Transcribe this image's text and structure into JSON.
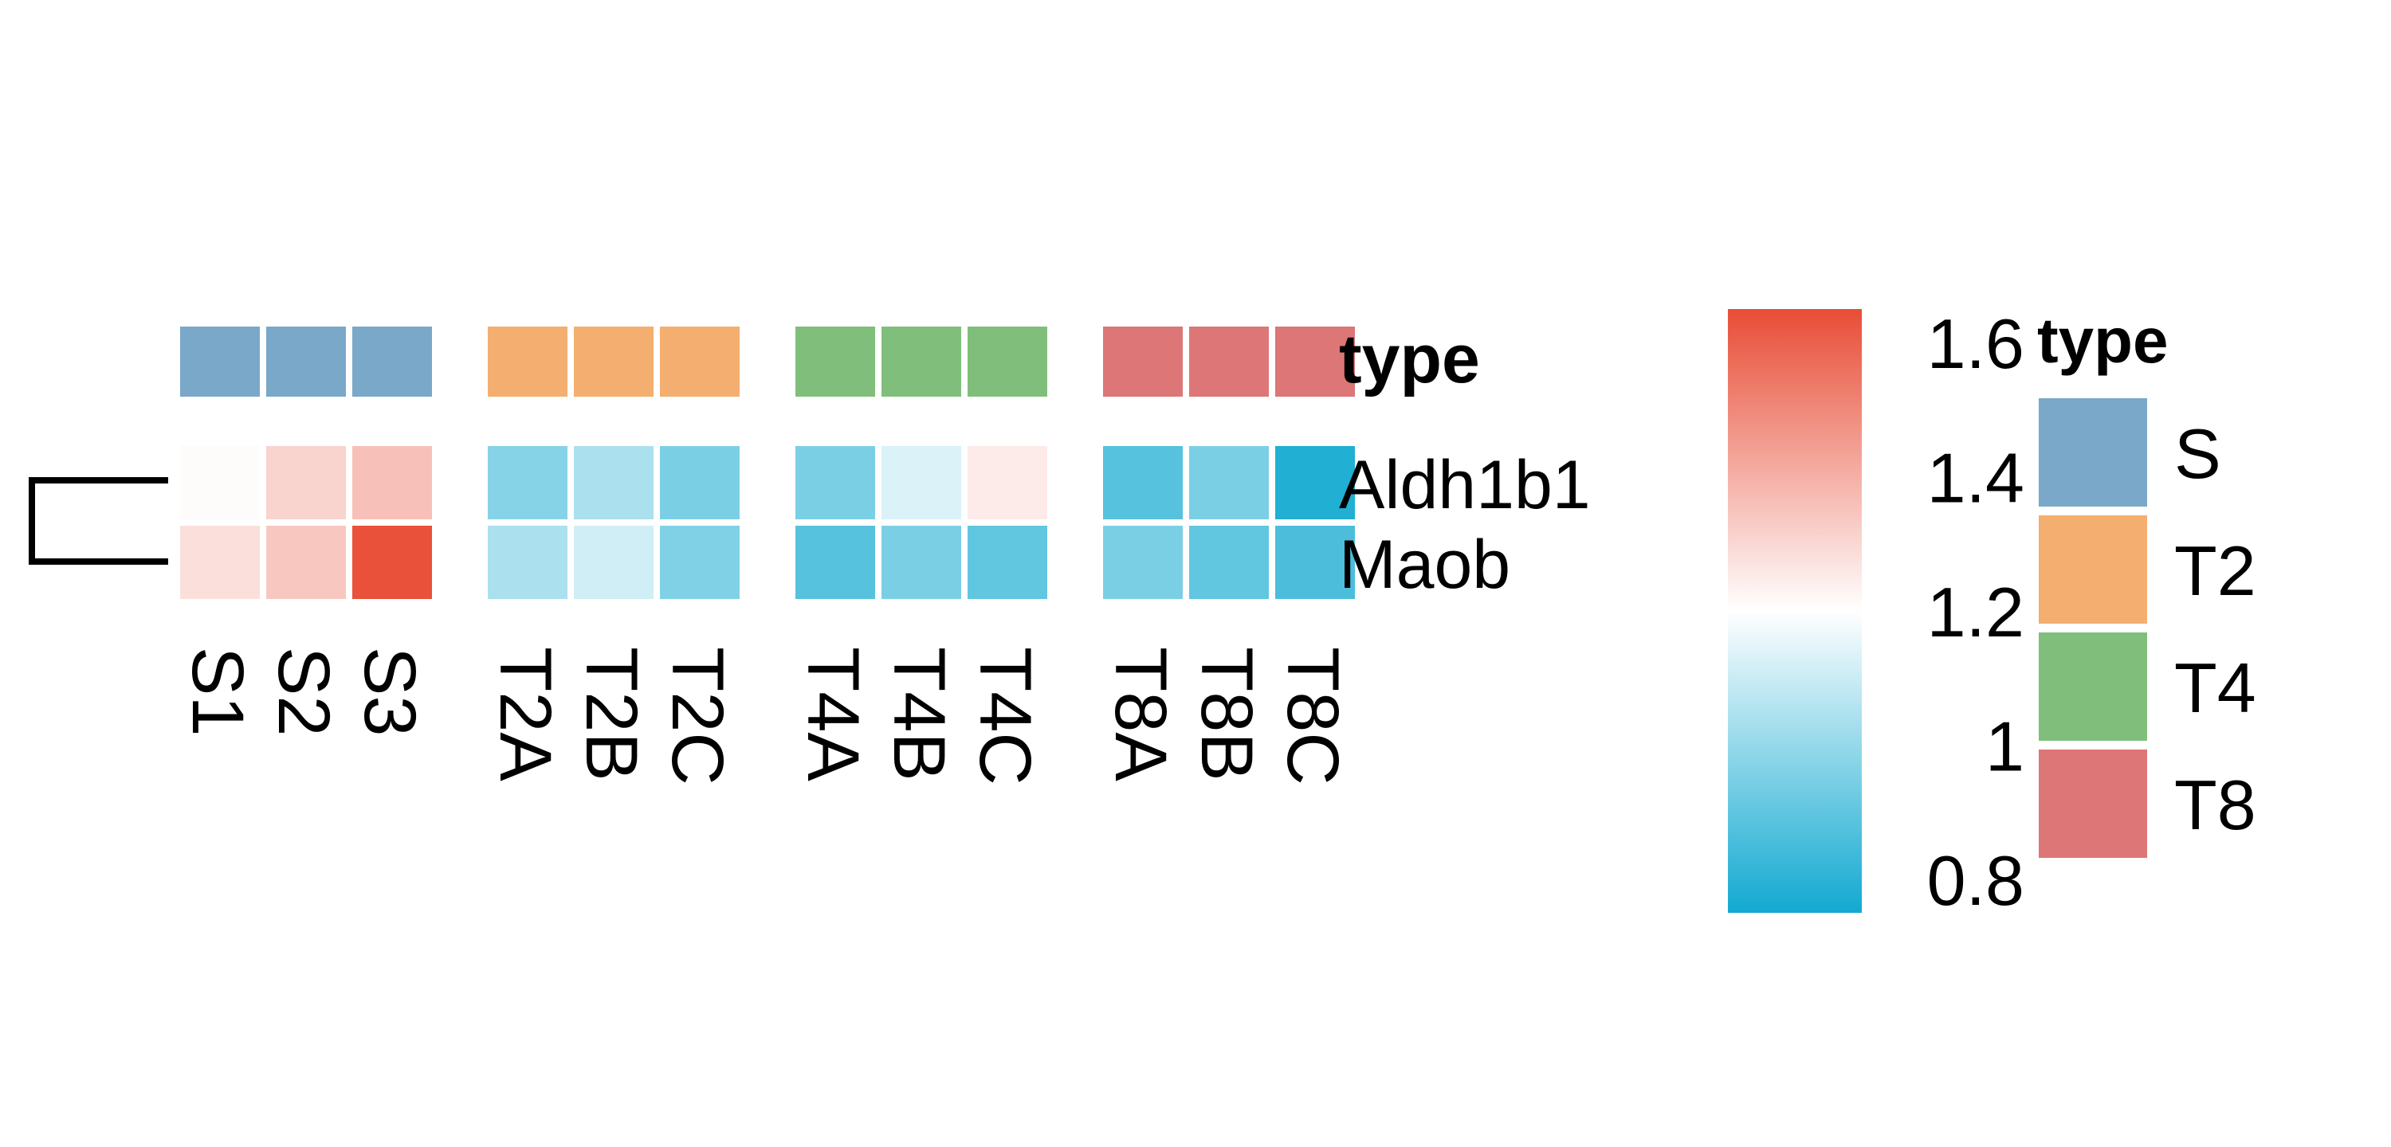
{
  "chart_data": {
    "type": "heatmap",
    "columns": [
      "S1",
      "S2",
      "S3",
      "T2A",
      "T2B",
      "T2C",
      "T4A",
      "T4B",
      "T4C",
      "T8A",
      "T8B",
      "T8C"
    ],
    "column_groups": [
      {
        "name": "S",
        "columns": [
          "S1",
          "S2",
          "S3"
        ]
      },
      {
        "name": "T2",
        "columns": [
          "T2A",
          "T2B",
          "T2C"
        ]
      },
      {
        "name": "T4",
        "columns": [
          "T4A",
          "T4B",
          "T4C"
        ]
      },
      {
        "name": "T8",
        "columns": [
          "T8A",
          "T8B",
          "T8C"
        ]
      }
    ],
    "rows": [
      "Aldh1b1",
      "Maob"
    ],
    "values": [
      [
        1.21,
        1.31,
        1.36,
        0.97,
        1.04,
        0.95,
        0.95,
        1.13,
        1.25,
        0.88,
        0.95,
        0.78
      ],
      [
        1.28,
        1.34,
        1.64,
        1.04,
        1.11,
        0.96,
        0.88,
        0.95,
        0.9,
        0.95,
        0.9,
        0.86
      ]
    ],
    "annotation": {
      "title": "type",
      "levels": [
        "S",
        "T2",
        "T4",
        "T8"
      ],
      "colors": [
        "#79a8c9",
        "#f4ae6f",
        "#80bf7b",
        "#dc7677"
      ]
    },
    "color_scale": {
      "ticks": [
        1.6,
        1.4,
        1.2,
        1,
        0.8
      ],
      "min": 0.75,
      "mid": 1.2,
      "max": 1.65,
      "low_color": "#12a9d1",
      "mid_color": "#ffffff",
      "high_color": "#e84d36"
    },
    "row_dendrogram": true,
    "grid": false
  }
}
